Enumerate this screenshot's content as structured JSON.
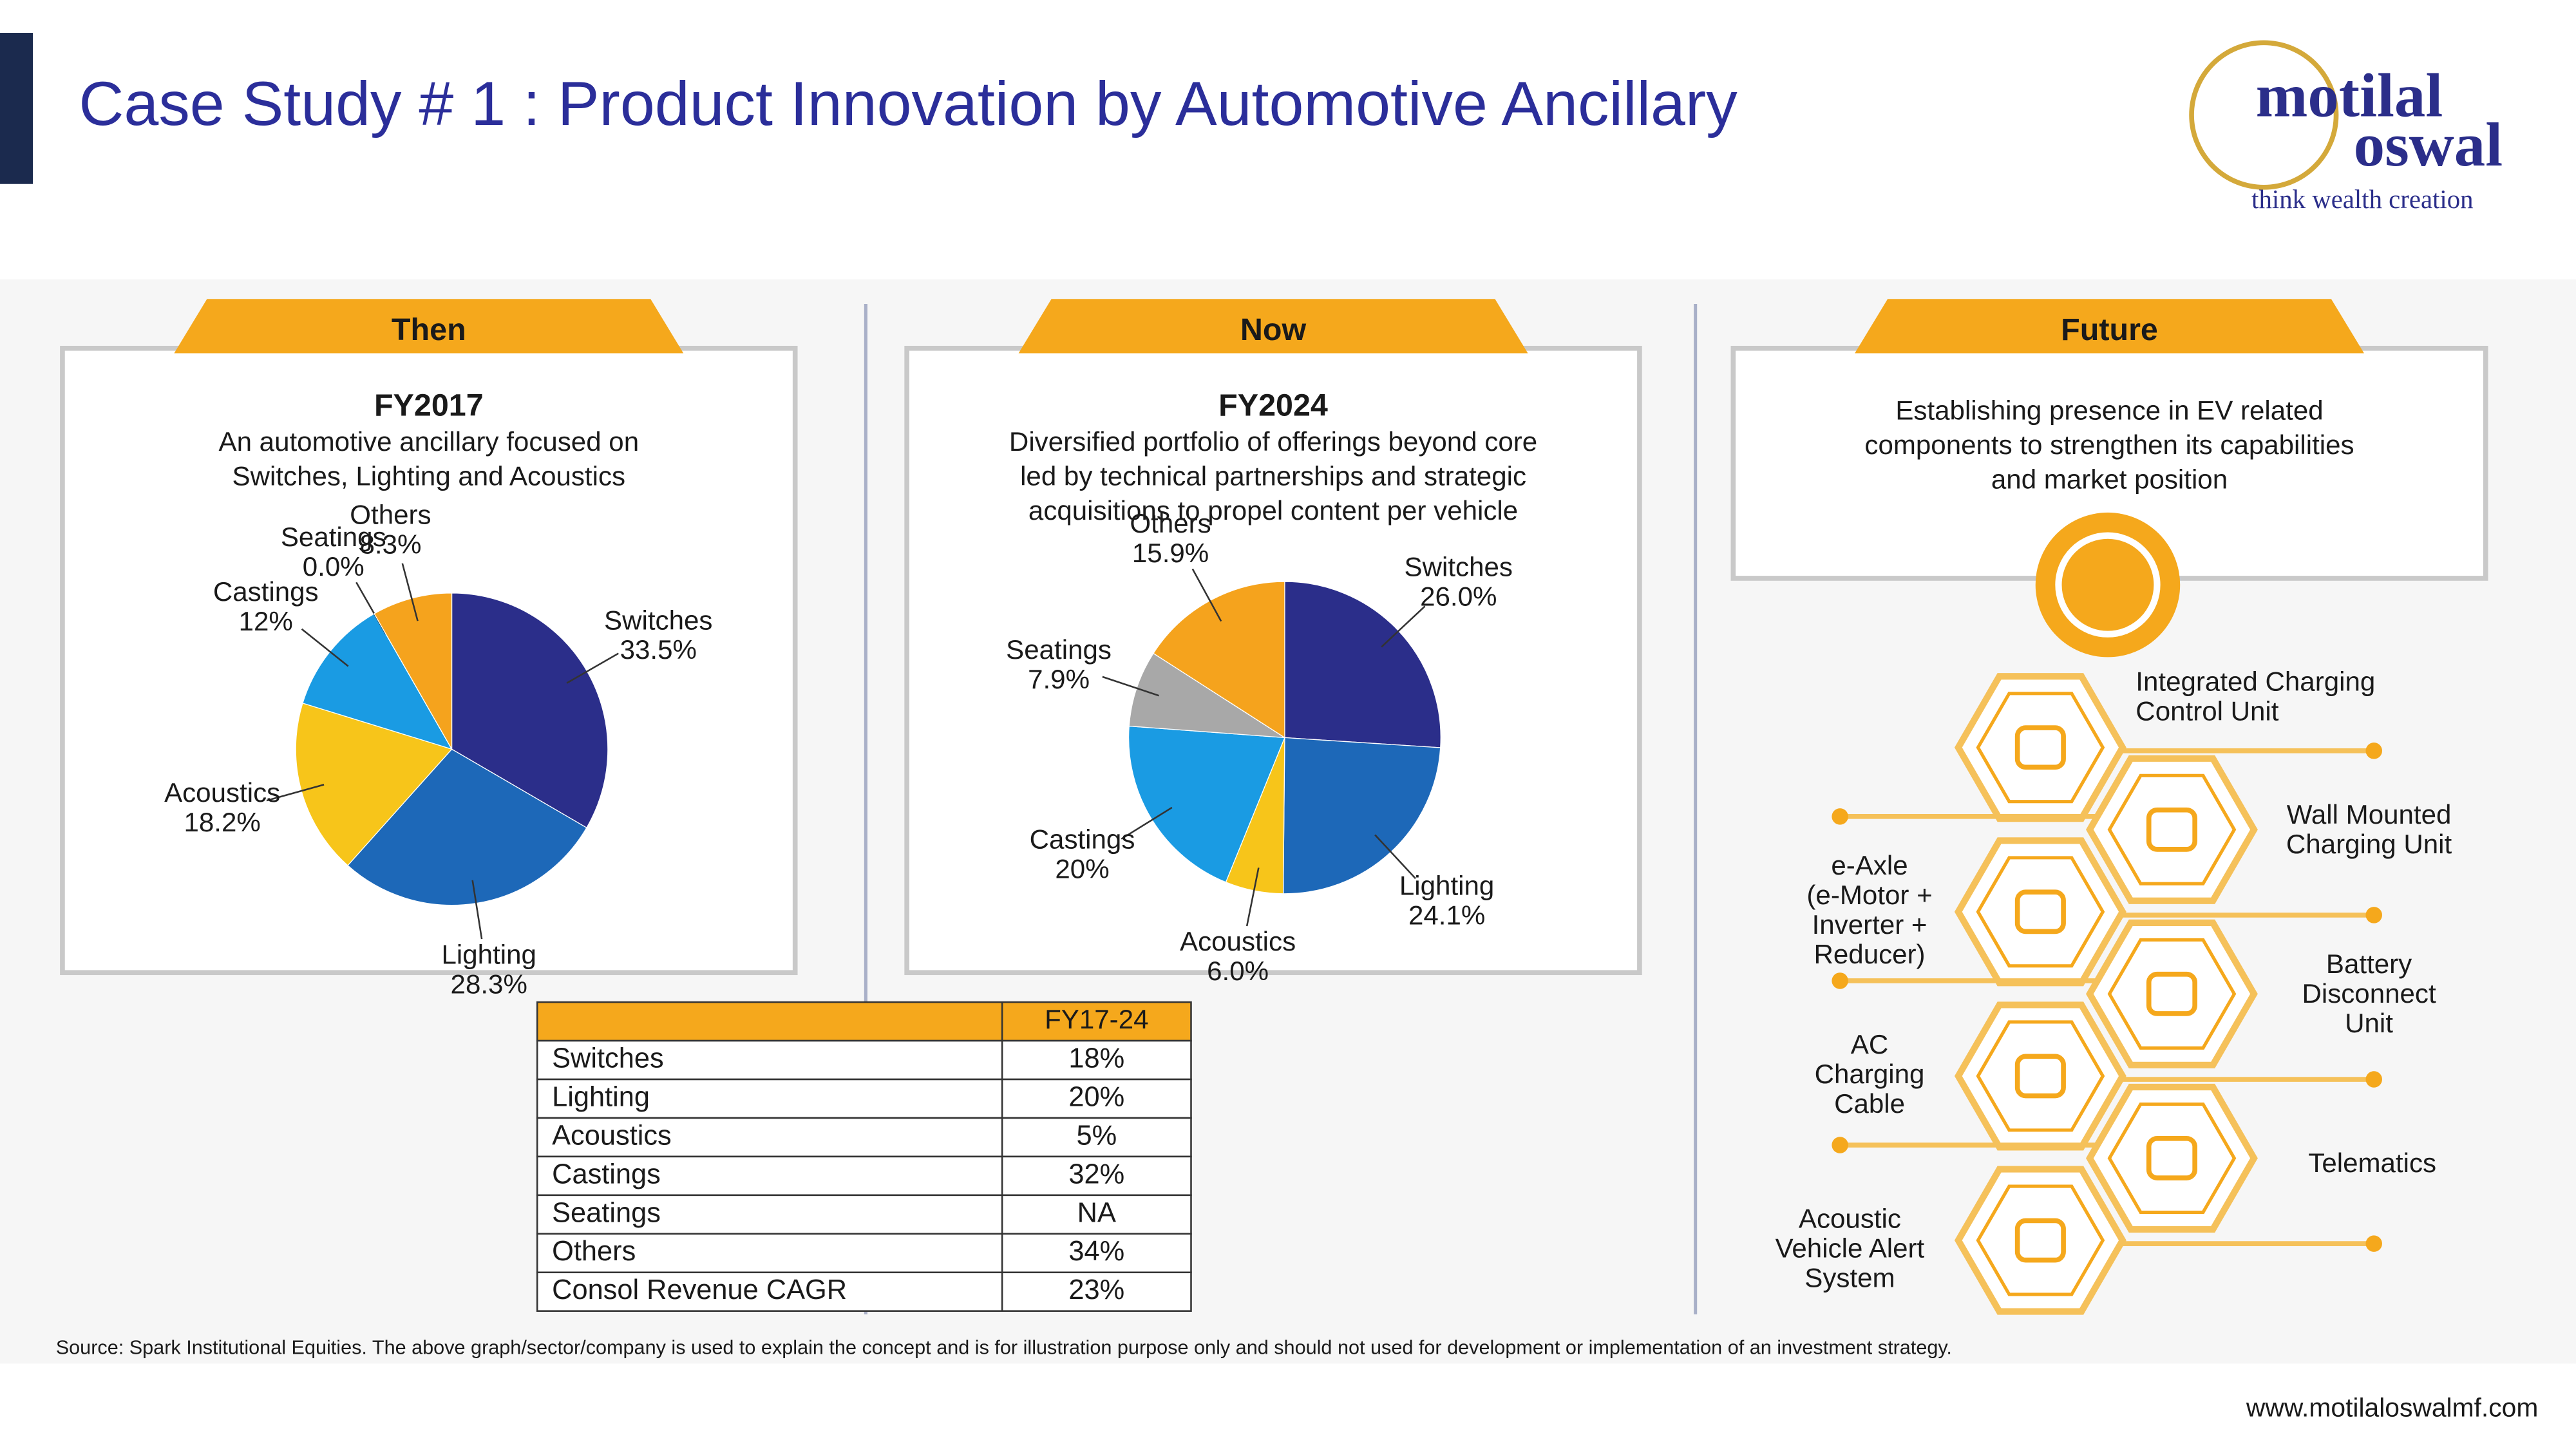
{
  "header": {
    "title": "Case Study # 1 : Product Innovation by Automotive Ancillary"
  },
  "logo": {
    "line1": "motilal",
    "line2": "oswal",
    "tagline": "think wealth creation"
  },
  "panels": [
    {
      "tab": "Then",
      "heading": "FY2017",
      "description": [
        "An automotive ancillary focused on",
        "Switches, Lighting and Acoustics"
      ]
    },
    {
      "tab": "Now",
      "heading": "FY2024",
      "description": [
        "Diversified portfolio of offerings beyond core",
        "led by technical partnerships and strategic",
        "acquisitions to propel content per vehicle"
      ]
    },
    {
      "tab": "Future",
      "description": [
        "Establishing presence in EV related",
        "components to strengthen its capabilities",
        "and market position"
      ]
    }
  ],
  "chart_data": [
    {
      "type": "pie",
      "categories": [
        "Switches",
        "Lighting",
        "Acoustics",
        "Castings",
        "Seatings",
        "Others"
      ],
      "values": [
        33.5,
        28.3,
        18.2,
        12,
        0.0,
        8.3
      ],
      "value_labels": [
        "33.5%",
        "28.3%",
        "18.2%",
        "12%",
        "0.0%",
        "8.3%"
      ],
      "colors": [
        "#2b2e8a",
        "#1d68b8",
        "#f7c51a",
        "#1a9be3",
        "#a8a8a8",
        "#f5a31d"
      ]
    },
    {
      "type": "pie",
      "categories": [
        "Switches",
        "Lighting",
        "Acoustics",
        "Castings",
        "Seatings",
        "Others"
      ],
      "values": [
        26.0,
        24.1,
        6.0,
        20,
        7.9,
        15.9
      ],
      "value_labels": [
        "26.0%",
        "24.1%",
        "6.0%",
        "20%",
        "7.9%",
        "15.9%"
      ],
      "colors": [
        "#2b2e8a",
        "#1d68b8",
        "#f7c51a",
        "#1a9be3",
        "#a8a8a8",
        "#f5a31d"
      ]
    }
  ],
  "table": {
    "header": [
      "",
      "FY17-24"
    ],
    "rows": [
      [
        "Switches",
        "18%"
      ],
      [
        "Lighting",
        "20%"
      ],
      [
        "Acoustics",
        "5%"
      ],
      [
        "Castings",
        "32%"
      ],
      [
        "Seatings",
        "NA"
      ],
      [
        "Others",
        "34%"
      ],
      [
        "Consol Revenue CAGR",
        "23%"
      ]
    ]
  },
  "future_items": [
    [
      "Integrated Charging",
      "Control Unit"
    ],
    [
      "Wall Mounted",
      "Charging Unit"
    ],
    [
      "e-Axle",
      "(e-Motor +",
      "Inverter +",
      "Reducer)"
    ],
    [
      "Battery",
      "Disconnect",
      "Unit"
    ],
    [
      "AC",
      "Charging",
      "Cable"
    ],
    [
      "Telematics"
    ],
    [
      "Acoustic",
      "Vehicle Alert",
      "System"
    ]
  ],
  "footer": {
    "source": "Source: Spark Institutional Equities. The above graph/sector/company is used to explain the concept and is for illustration purpose only and should not used for development or implementation of an investment strategy.",
    "url": "www.motilaloswalmf.com"
  }
}
